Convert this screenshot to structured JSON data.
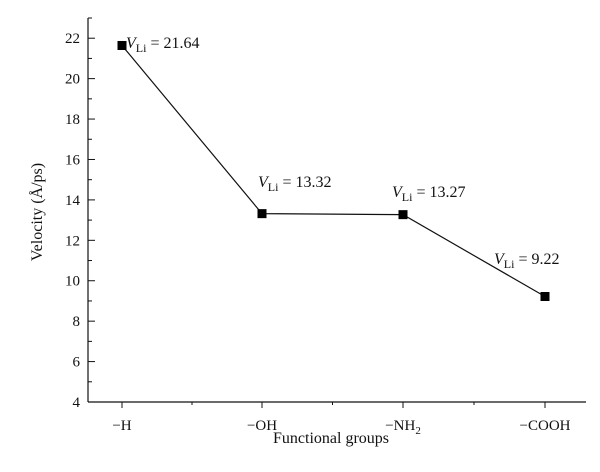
{
  "chart_data": {
    "type": "line",
    "xlabel": "Functional groups",
    "ylabel": "Velocity (Å/ps)",
    "ylim": [
      4,
      23
    ],
    "yticks": [
      4,
      6,
      8,
      10,
      12,
      14,
      16,
      18,
      20,
      22
    ],
    "categories": [
      {
        "main": "−H",
        "sub": ""
      },
      {
        "main": "−OH",
        "sub": ""
      },
      {
        "main": "−NH",
        "sub": "2"
      },
      {
        "main": "−COOH",
        "sub": ""
      }
    ],
    "series": [
      {
        "values": [
          21.64,
          13.32,
          13.27,
          9.22
        ]
      }
    ],
    "annotations": [
      {
        "symbol": "V",
        "subscript": "Li",
        "text": " = 21.64"
      },
      {
        "symbol": "V",
        "subscript": "Li",
        "text": " = 13.32"
      },
      {
        "symbol": "V",
        "subscript": "Li",
        "text": " = 13.27"
      },
      {
        "symbol": "V",
        "subscript": "Li",
        "text": " = 9.22"
      }
    ],
    "marker": "square",
    "colors": {
      "line": "#111111",
      "marker": "#000000"
    },
    "grid": false,
    "legend": "none"
  }
}
